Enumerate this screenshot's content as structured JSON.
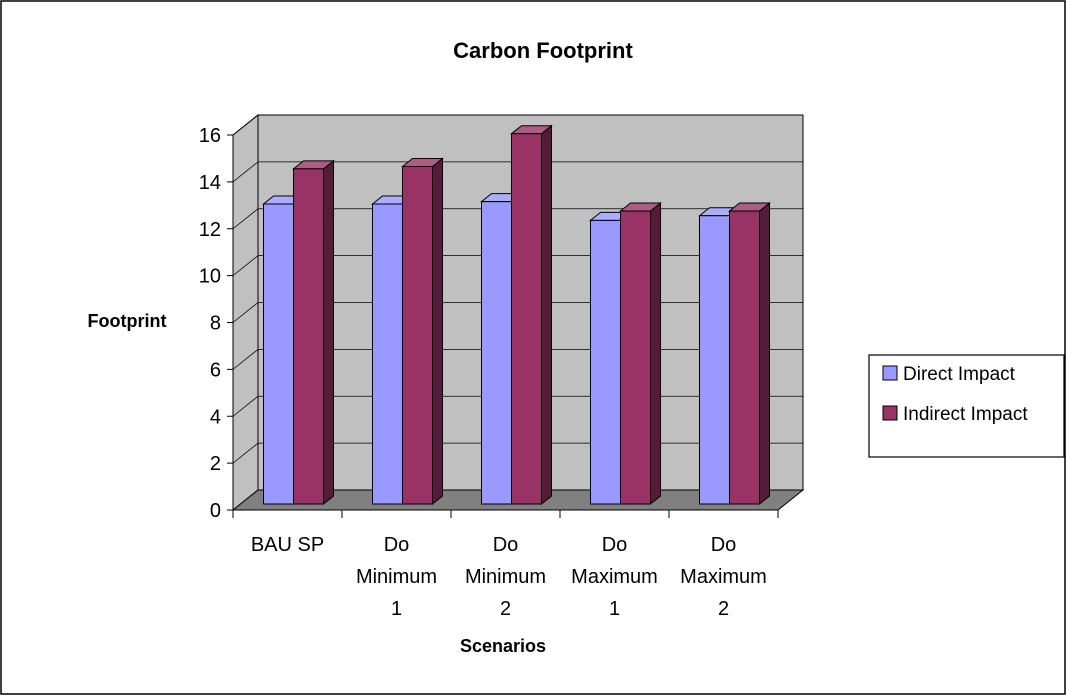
{
  "chart_data": {
    "type": "bar",
    "style": "3d-clustered-column",
    "title": "Carbon Footprint",
    "xlabel": "Scenarios",
    "ylabel": "Footprint",
    "categories": [
      [
        "BAU SP"
      ],
      [
        "Do",
        "Minimum",
        "1"
      ],
      [
        "Do",
        "Minimum",
        "2"
      ],
      [
        "Do",
        "Maximum",
        "1"
      ],
      [
        "Do",
        "Maximum",
        "2"
      ]
    ],
    "series": [
      {
        "name": "Direct Impact",
        "values": [
          12.8,
          12.8,
          12.9,
          12.1,
          12.3
        ],
        "color": "#9999ff"
      },
      {
        "name": "Indirect Impact",
        "values": [
          14.3,
          14.4,
          15.8,
          12.5,
          12.5
        ],
        "color": "#993366"
      }
    ],
    "ylim": [
      0,
      16
    ],
    "yticks": [
      0,
      2,
      4,
      6,
      8,
      10,
      12,
      14,
      16
    ],
    "grid": true,
    "legend": "right",
    "wall_color": "#c0c0c0",
    "floor_color": "#808080"
  }
}
